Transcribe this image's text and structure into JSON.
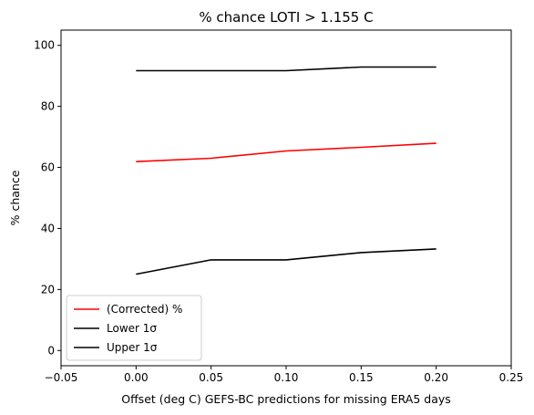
{
  "chart_data": {
    "type": "line",
    "title": "% chance LOTI > 1.155 C",
    "xlabel": "Offset (deg C) GEFS-BC predictions for missing ERA5 days",
    "ylabel": "% chance",
    "xlim": [
      -0.05,
      0.25
    ],
    "ylim": [
      -5,
      105
    ],
    "xticks": [
      -0.05,
      0.0,
      0.05,
      0.1,
      0.15,
      0.2,
      0.25
    ],
    "xtick_labels": [
      "−0.05",
      "0.00",
      "0.05",
      "0.10",
      "0.15",
      "0.20",
      "0.25"
    ],
    "yticks": [
      0,
      20,
      40,
      60,
      80,
      100
    ],
    "ytick_labels": [
      "0",
      "20",
      "40",
      "60",
      "80",
      "100"
    ],
    "grid": false,
    "legend_position": "lower-left",
    "x": [
      0.0,
      0.05,
      0.1,
      0.15,
      0.2
    ],
    "series": [
      {
        "name": "(Corrected) %",
        "color": "#ff0000",
        "values": [
          61.9,
          63.0,
          65.4,
          66.6,
          67.9
        ]
      },
      {
        "name": "Lower 1σ",
        "color": "#000000",
        "values": [
          25.0,
          29.7,
          29.7,
          32.1,
          33.3
        ]
      },
      {
        "name": "Upper 1σ",
        "color": "#000000",
        "values": [
          91.7,
          91.7,
          91.7,
          92.9,
          92.9
        ]
      }
    ]
  }
}
